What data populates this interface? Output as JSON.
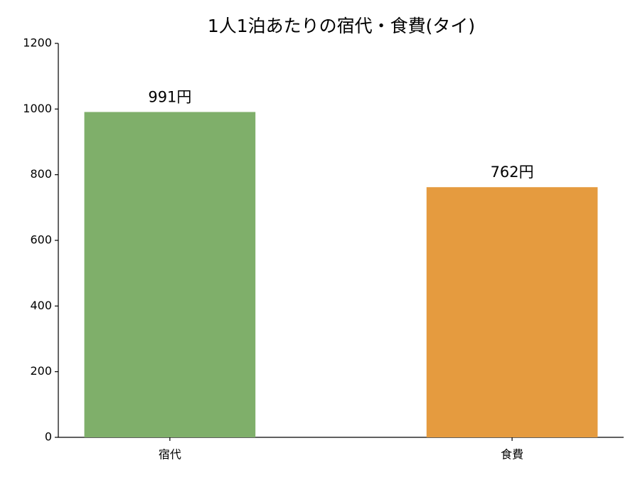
{
  "chart_data": {
    "type": "bar",
    "title": "1人1泊あたりの宿代・食費(タイ)",
    "categories": [
      "宿代",
      "食費"
    ],
    "values": [
      991,
      762
    ],
    "value_labels": [
      "991円",
      "762円"
    ],
    "colors": [
      "#7faf6a",
      "#e59b3f"
    ],
    "ylim": [
      0,
      1200
    ],
    "yticks": [
      0,
      200,
      400,
      600,
      800,
      1000,
      1200
    ],
    "grid": false
  }
}
